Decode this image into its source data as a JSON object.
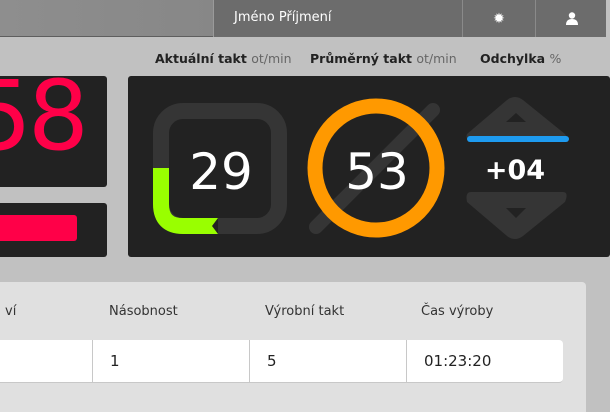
{
  "header": {
    "user_name": "Jméno Příjmení",
    "settings_icon": "gear-icon",
    "user_icon": "user-icon"
  },
  "labels": {
    "current": {
      "title": "Aktuální takt",
      "unit": "ot/min"
    },
    "average": {
      "title": "Průměrný takt",
      "unit": "ot/min"
    },
    "deviation": {
      "title": "Odchylka",
      "unit": "%"
    }
  },
  "left_panel": {
    "value": "58",
    "bar_color": "#ff0048"
  },
  "gauges": {
    "current": {
      "value": "29",
      "fill_color": "#99ff00"
    },
    "average": {
      "value": "53",
      "ring_color": "#ff9900"
    },
    "deviation": {
      "value": "+04",
      "indicator_color": "#1e9bf0",
      "direction": "up"
    }
  },
  "table": {
    "headers": [
      "ví",
      "Násobnost",
      "Výrobní takt",
      "Čas výroby"
    ],
    "row": [
      "",
      "1",
      "5",
      "01:23:20"
    ]
  }
}
